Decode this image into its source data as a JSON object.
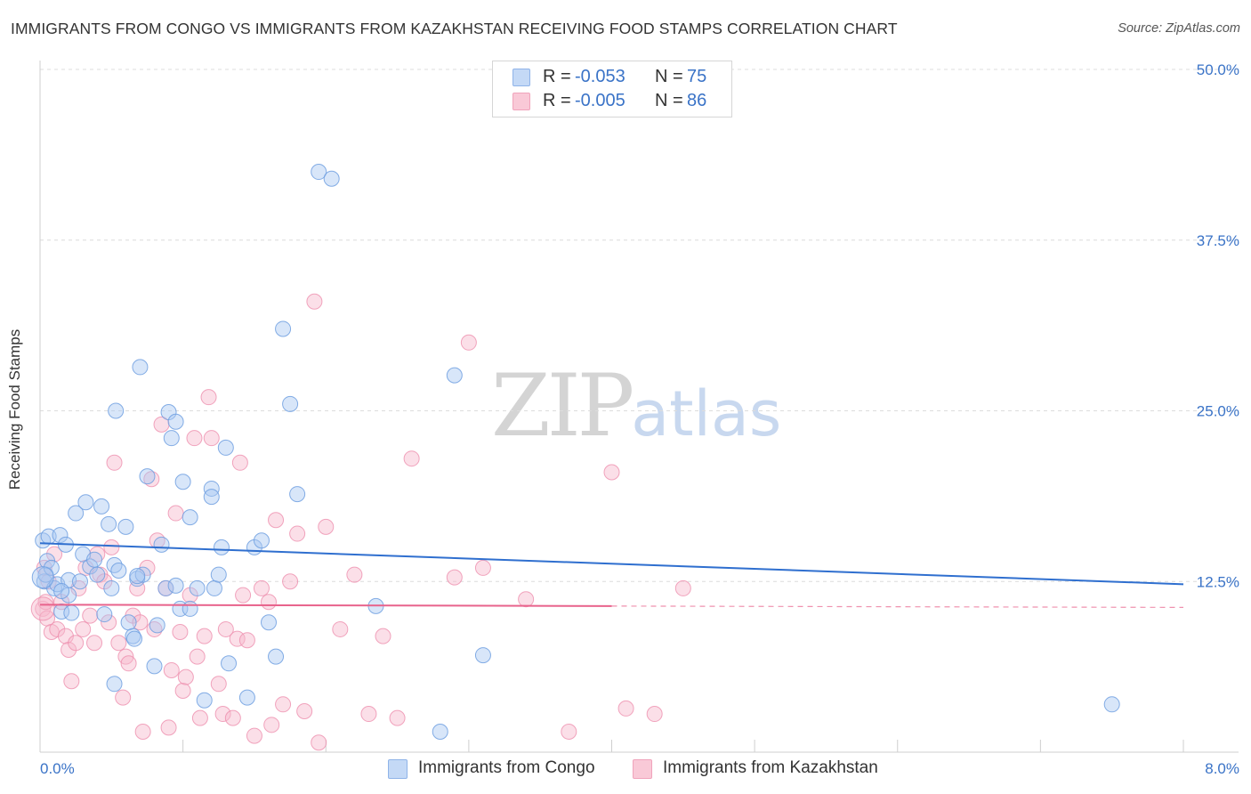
{
  "header": {
    "title": "IMMIGRANTS FROM CONGO VS IMMIGRANTS FROM KAZAKHSTAN RECEIVING FOOD STAMPS CORRELATION CHART",
    "source": "Source: ZipAtlas.com"
  },
  "watermark": {
    "zip": "ZIP",
    "atlas": "atlas"
  },
  "legend": {
    "congo": {
      "r_label": "R =",
      "r_value": "-0.053",
      "n_label": "N =",
      "n_value": "75"
    },
    "kazakhstan": {
      "r_label": "R =",
      "r_value": "-0.005",
      "n_label": "N =",
      "n_value": "86"
    }
  },
  "bottom_legend": {
    "congo": "Immigrants from Congo",
    "kazakhstan": "Immigrants from Kazakhstan"
  },
  "chart_data": {
    "type": "scatter",
    "title": "IMMIGRANTS FROM CONGO VS IMMIGRANTS FROM KAZAKHSTAN RECEIVING FOOD STAMPS CORRELATION CHART",
    "xlabel": "",
    "ylabel": "Receiving Food Stamps",
    "xlim": [
      0,
      8
    ],
    "ylim": [
      0,
      50
    ],
    "x_tick_labels": [
      "0.0%",
      "8.0%"
    ],
    "y_ticks": [
      12.5,
      25.0,
      37.5,
      50.0
    ],
    "y_tick_labels": [
      "12.5%",
      "25.0%",
      "37.5%",
      "50.0%"
    ],
    "colors": {
      "congo": "#a9c8f2",
      "congo_edge": "#6f9fe0",
      "congo_line": "#2f6fcf",
      "kazakhstan": "#f7b8cb",
      "kazakhstan_edge": "#ee8fae",
      "kazakhstan_line": "#e8638c",
      "tick_text": "#3a73c7"
    },
    "series": [
      {
        "name": "Immigrants from Congo",
        "trend": {
          "x": [
            0,
            8
          ],
          "y": [
            15.3,
            12.3
          ]
        },
        "points": [
          [
            0.02,
            15.5
          ],
          [
            0.03,
            12.5
          ],
          [
            0.04,
            13.0
          ],
          [
            0.05,
            14.0
          ],
          [
            0.06,
            15.8
          ],
          [
            0.08,
            13.5
          ],
          [
            0.1,
            12.0
          ],
          [
            0.12,
            12.3
          ],
          [
            0.14,
            15.9
          ],
          [
            0.15,
            10.3
          ],
          [
            0.18,
            15.2
          ],
          [
            0.2,
            12.6
          ],
          [
            0.25,
            17.5
          ],
          [
            0.28,
            12.5
          ],
          [
            0.3,
            14.5
          ],
          [
            0.32,
            18.3
          ],
          [
            0.35,
            13.6
          ],
          [
            0.38,
            14.1
          ],
          [
            0.4,
            13.0
          ],
          [
            0.43,
            18.0
          ],
          [
            0.45,
            10.1
          ],
          [
            0.48,
            16.7
          ],
          [
            0.5,
            12.0
          ],
          [
            0.52,
            13.7
          ],
          [
            0.55,
            13.3
          ],
          [
            0.52,
            5.0
          ],
          [
            0.53,
            25.0
          ],
          [
            0.6,
            16.5
          ],
          [
            0.62,
            9.5
          ],
          [
            0.65,
            8.5
          ],
          [
            0.68,
            12.7
          ],
          [
            0.7,
            28.2
          ],
          [
            0.72,
            13.0
          ],
          [
            0.75,
            20.2
          ],
          [
            0.68,
            12.9
          ],
          [
            0.66,
            8.3
          ],
          [
            0.8,
            6.3
          ],
          [
            0.82,
            9.3
          ],
          [
            0.85,
            15.2
          ],
          [
            0.88,
            12.0
          ],
          [
            0.9,
            24.9
          ],
          [
            0.92,
            23.0
          ],
          [
            0.95,
            24.2
          ],
          [
            0.98,
            10.5
          ],
          [
            1.0,
            19.8
          ],
          [
            1.05,
            17.2
          ],
          [
            1.1,
            12.0
          ],
          [
            1.15,
            3.8
          ],
          [
            1.2,
            19.3
          ],
          [
            1.22,
            12.0
          ],
          [
            1.25,
            13.0
          ],
          [
            1.3,
            22.3
          ],
          [
            1.27,
            15.0
          ],
          [
            1.32,
            6.5
          ],
          [
            1.5,
            15.0
          ],
          [
            1.55,
            15.5
          ],
          [
            1.6,
            9.5
          ],
          [
            1.65,
            7.0
          ],
          [
            1.7,
            31.0
          ],
          [
            1.75,
            25.5
          ],
          [
            1.8,
            18.9
          ],
          [
            1.05,
            10.5
          ],
          [
            1.45,
            4.0
          ],
          [
            1.95,
            42.5
          ],
          [
            2.04,
            42.0
          ],
          [
            1.2,
            18.7
          ],
          [
            0.95,
            12.2
          ],
          [
            0.2,
            11.5
          ],
          [
            0.15,
            11.8
          ],
          [
            0.22,
            10.2
          ],
          [
            2.35,
            10.7
          ],
          [
            2.8,
            1.5
          ],
          [
            2.9,
            27.6
          ],
          [
            3.1,
            7.1
          ],
          [
            7.5,
            3.5
          ]
        ]
      },
      {
        "name": "Immigrants from Kazakhstan",
        "trend": {
          "x": [
            0,
            4
          ],
          "y": [
            10.8,
            10.7
          ],
          "x_dashed": [
            4,
            8
          ],
          "y_dashed": [
            10.7,
            10.6
          ]
        },
        "points": [
          [
            0.02,
            10.5
          ],
          [
            0.03,
            13.5
          ],
          [
            0.04,
            11.0
          ],
          [
            0.05,
            9.8
          ],
          [
            0.06,
            12.5
          ],
          [
            0.08,
            8.8
          ],
          [
            0.1,
            14.5
          ],
          [
            0.12,
            9.0
          ],
          [
            0.15,
            11.0
          ],
          [
            0.18,
            8.5
          ],
          [
            0.2,
            7.5
          ],
          [
            0.22,
            5.2
          ],
          [
            0.25,
            8.0
          ],
          [
            0.27,
            12.0
          ],
          [
            0.3,
            9.0
          ],
          [
            0.32,
            13.5
          ],
          [
            0.35,
            10.0
          ],
          [
            0.38,
            8.0
          ],
          [
            0.4,
            14.5
          ],
          [
            0.42,
            13.0
          ],
          [
            0.45,
            12.5
          ],
          [
            0.48,
            9.5
          ],
          [
            0.5,
            15.0
          ],
          [
            0.52,
            21.2
          ],
          [
            0.55,
            8.0
          ],
          [
            0.58,
            4.0
          ],
          [
            0.6,
            7.0
          ],
          [
            0.62,
            6.5
          ],
          [
            0.65,
            10.0
          ],
          [
            0.68,
            12.0
          ],
          [
            0.7,
            9.5
          ],
          [
            0.72,
            1.5
          ],
          [
            0.75,
            13.5
          ],
          [
            0.78,
            20.0
          ],
          [
            0.8,
            9.0
          ],
          [
            0.82,
            15.5
          ],
          [
            0.85,
            24.0
          ],
          [
            0.88,
            12.0
          ],
          [
            0.9,
            1.8
          ],
          [
            0.92,
            6.0
          ],
          [
            0.95,
            17.5
          ],
          [
            0.98,
            8.8
          ],
          [
            1.0,
            4.5
          ],
          [
            1.02,
            5.5
          ],
          [
            1.05,
            11.5
          ],
          [
            1.08,
            23.0
          ],
          [
            1.1,
            7.0
          ],
          [
            1.12,
            2.5
          ],
          [
            1.15,
            8.5
          ],
          [
            1.18,
            26.0
          ],
          [
            1.2,
            23.0
          ],
          [
            1.25,
            5.0
          ],
          [
            1.28,
            2.8
          ],
          [
            1.3,
            9.0
          ],
          [
            1.35,
            2.5
          ],
          [
            1.38,
            8.3
          ],
          [
            1.4,
            21.2
          ],
          [
            1.42,
            11.5
          ],
          [
            1.45,
            8.2
          ],
          [
            1.5,
            1.2
          ],
          [
            1.55,
            12.0
          ],
          [
            1.6,
            11.0
          ],
          [
            1.62,
            2.0
          ],
          [
            1.65,
            17.0
          ],
          [
            1.7,
            3.5
          ],
          [
            1.75,
            12.5
          ],
          [
            1.8,
            16.0
          ],
          [
            1.85,
            3.0
          ],
          [
            1.92,
            33.0
          ],
          [
            1.95,
            0.7
          ],
          [
            2.0,
            16.5
          ],
          [
            2.1,
            9.0
          ],
          [
            2.2,
            13.0
          ],
          [
            2.3,
            2.8
          ],
          [
            2.4,
            8.5
          ],
          [
            2.5,
            2.5
          ],
          [
            2.6,
            21.5
          ],
          [
            2.9,
            12.8
          ],
          [
            3.0,
            30.0
          ],
          [
            3.1,
            13.5
          ],
          [
            3.4,
            11.2
          ],
          [
            3.7,
            1.5
          ],
          [
            4.0,
            20.5
          ],
          [
            4.1,
            3.2
          ],
          [
            4.3,
            2.8
          ],
          [
            4.5,
            12.0
          ]
        ]
      }
    ]
  }
}
